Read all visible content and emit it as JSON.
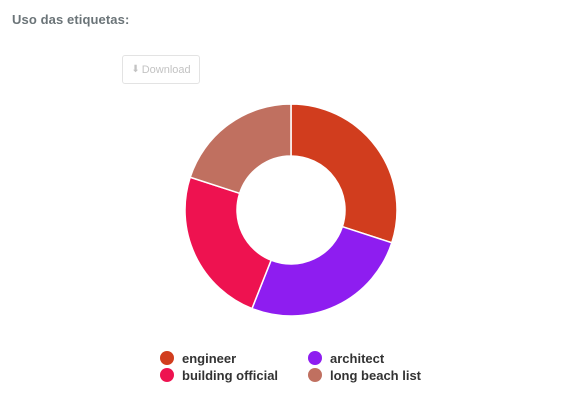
{
  "panel": {
    "title": "Uso das etiquetas:",
    "download_label": "Download",
    "download_icon": "download-arrow-icon"
  },
  "chart_data": {
    "type": "pie",
    "donut": true,
    "categories": [
      "engineer",
      "architect",
      "building official",
      "long beach list"
    ],
    "values": [
      30,
      26,
      24,
      20
    ],
    "colors": [
      "#d13d1e",
      "#8e1df0",
      "#ee1250",
      "#c07060"
    ],
    "legend_position": "bottom",
    "title": "",
    "data_labels": false
  }
}
